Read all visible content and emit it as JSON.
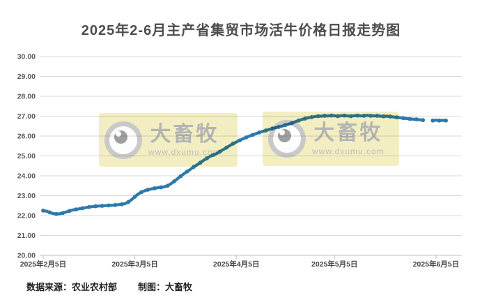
{
  "title": "2025年2-6月主产省集贸市场活牛价格日报走势图",
  "footer": {
    "source_label": "数据来源：农业农村部",
    "credit_label": "制图：大畜牧"
  },
  "watermark": {
    "brand": "大畜牧",
    "url": "www.dxumu.com"
  },
  "colors": {
    "line": "#2e79ab",
    "grid": "#d9d9d9",
    "axis": "#bfbfbf",
    "title_text": "#4d4d4d",
    "tick_text": "#595959",
    "watermark_bg": "#f3eec1",
    "watermark_text": "#b4b4b4"
  },
  "chart_data": {
    "type": "line",
    "title": "2025年2-6月主产省集贸市场活牛价格日报走势图",
    "xlabel": "",
    "ylabel": "",
    "ylim": [
      20,
      30
    ],
    "grid": true,
    "legend": "none",
    "y_tick_labels": [
      "30.00",
      "29.00",
      "28.00",
      "27.00",
      "26.00",
      "25.00",
      "24.00",
      "23.00",
      "22.00",
      "21.00",
      "20.00"
    ],
    "x_ticks": [
      {
        "label": "2025年2月5日",
        "date": "2025-02-05"
      },
      {
        "label": "2025年3月5日",
        "date": "2025-03-05"
      },
      {
        "label": "2025年4月5日",
        "date": "2025-04-05"
      },
      {
        "label": "2025年5月5日",
        "date": "2025-05-05"
      },
      {
        "label": "2025年6月5日",
        "date": "2025-06-05"
      }
    ],
    "series": [
      {
        "name": "主产省集贸市场活牛价格（日报）",
        "points": [
          [
            "2025-02-05",
            22.25
          ],
          [
            "2025-02-06",
            22.22
          ],
          [
            "2025-02-07",
            22.16
          ],
          [
            "2025-02-08",
            22.1
          ],
          [
            "2025-02-09",
            22.08
          ],
          [
            "2025-02-10",
            22.09
          ],
          [
            "2025-02-11",
            22.13
          ],
          [
            "2025-02-12",
            22.18
          ],
          [
            "2025-02-13",
            22.23
          ],
          [
            "2025-02-14",
            22.28
          ],
          [
            "2025-02-15",
            22.31
          ],
          [
            "2025-02-16",
            22.34
          ],
          [
            "2025-02-17",
            22.37
          ],
          [
            "2025-02-18",
            22.4
          ],
          [
            "2025-02-19",
            22.43
          ],
          [
            "2025-02-20",
            22.45
          ],
          [
            "2025-02-21",
            22.47
          ],
          [
            "2025-02-22",
            22.48
          ],
          [
            "2025-02-23",
            22.49
          ],
          [
            "2025-02-24",
            22.5
          ],
          [
            "2025-02-25",
            22.51
          ],
          [
            "2025-02-26",
            22.52
          ],
          [
            "2025-02-27",
            22.53
          ],
          [
            "2025-02-28",
            22.55
          ],
          [
            "2025-03-01",
            22.57
          ],
          [
            "2025-03-02",
            22.6
          ],
          [
            "2025-03-03",
            22.68
          ],
          [
            "2025-03-04",
            22.8
          ],
          [
            "2025-03-05",
            22.95
          ],
          [
            "2025-03-06",
            23.08
          ],
          [
            "2025-03-07",
            23.18
          ],
          [
            "2025-03-08",
            23.25
          ],
          [
            "2025-03-09",
            23.3
          ],
          [
            "2025-03-10",
            23.34
          ],
          [
            "2025-03-11",
            23.37
          ],
          [
            "2025-03-12",
            23.4
          ],
          [
            "2025-03-13",
            23.42
          ],
          [
            "2025-03-14",
            23.45
          ],
          [
            "2025-03-15",
            23.5
          ],
          [
            "2025-03-16",
            23.6
          ],
          [
            "2025-03-17",
            23.72
          ],
          [
            "2025-03-18",
            23.85
          ],
          [
            "2025-03-19",
            23.98
          ],
          [
            "2025-03-20",
            24.1
          ],
          [
            "2025-03-21",
            24.22
          ],
          [
            "2025-03-22",
            24.33
          ],
          [
            "2025-03-23",
            24.45
          ],
          [
            "2025-03-24",
            24.55
          ],
          [
            "2025-03-25",
            24.66
          ],
          [
            "2025-03-26",
            24.78
          ],
          [
            "2025-03-27",
            24.88
          ],
          [
            "2025-03-28",
            24.98
          ],
          [
            "2025-03-29",
            25.05
          ],
          [
            "2025-03-30",
            25.12
          ],
          [
            "2025-03-31",
            25.22
          ],
          [
            "2025-04-01",
            25.32
          ],
          [
            "2025-04-02",
            25.42
          ],
          [
            "2025-04-03",
            25.52
          ],
          [
            "2025-04-04",
            25.62
          ],
          [
            "2025-04-05",
            25.7
          ],
          [
            "2025-04-06",
            25.78
          ],
          [
            "2025-04-07",
            25.86
          ],
          [
            "2025-04-08",
            25.93
          ],
          [
            "2025-04-09",
            26.0
          ],
          [
            "2025-04-10",
            26.06
          ],
          [
            "2025-04-11",
            26.12
          ],
          [
            "2025-04-12",
            26.18
          ],
          [
            "2025-04-13",
            26.23
          ],
          [
            "2025-04-14",
            26.28
          ],
          [
            "2025-04-15",
            26.33
          ],
          [
            "2025-04-16",
            26.38
          ],
          [
            "2025-04-17",
            26.42
          ],
          [
            "2025-04-18",
            26.46
          ],
          [
            "2025-04-19",
            26.5
          ],
          [
            "2025-04-20",
            26.55
          ],
          [
            "2025-04-21",
            26.6
          ],
          [
            "2025-04-22",
            26.66
          ],
          [
            "2025-04-23",
            26.72
          ],
          [
            "2025-04-24",
            26.78
          ],
          [
            "2025-04-25",
            26.83
          ],
          [
            "2025-04-26",
            26.88
          ],
          [
            "2025-04-27",
            26.92
          ],
          [
            "2025-04-28",
            26.95
          ],
          [
            "2025-04-29",
            26.98
          ],
          [
            "2025-04-30",
            27.0
          ],
          [
            "2025-05-01",
            27.0
          ],
          [
            "2025-05-02",
            27.02
          ],
          [
            "2025-05-03",
            27.01
          ],
          [
            "2025-05-04",
            27.03
          ],
          [
            "2025-05-05",
            27.02
          ],
          [
            "2025-05-06",
            27.0
          ],
          [
            "2025-05-07",
            27.02
          ],
          [
            "2025-05-08",
            27.03
          ],
          [
            "2025-05-09",
            27.01
          ],
          [
            "2025-05-10",
            27.0
          ],
          [
            "2025-05-11",
            27.02
          ],
          [
            "2025-05-12",
            27.03
          ],
          [
            "2025-05-13",
            27.01
          ],
          [
            "2025-05-14",
            27.02
          ],
          [
            "2025-05-15",
            27.04
          ],
          [
            "2025-05-16",
            27.02
          ],
          [
            "2025-05-17",
            27.01
          ],
          [
            "2025-05-18",
            27.02
          ],
          [
            "2025-05-19",
            27.0
          ],
          [
            "2025-05-20",
            26.99
          ],
          [
            "2025-05-21",
            27.0
          ],
          [
            "2025-05-22",
            26.98
          ],
          [
            "2025-05-23",
            26.96
          ],
          [
            "2025-05-24",
            26.94
          ],
          [
            "2025-05-25",
            26.92
          ],
          [
            "2025-05-26",
            26.9
          ],
          [
            "2025-05-27",
            26.88
          ],
          [
            "2025-05-28",
            26.86
          ],
          [
            "2025-05-29",
            26.85
          ],
          [
            "2025-05-30",
            26.84
          ],
          [
            "2025-05-31",
            26.82
          ],
          [
            "2025-06-01",
            26.8
          ],
          [
            "2025-06-02",
            null
          ],
          [
            "2025-06-03",
            null
          ],
          [
            "2025-06-04",
            26.78
          ],
          [
            "2025-06-05",
            26.8
          ],
          [
            "2025-06-06",
            26.78
          ],
          [
            "2025-06-07",
            26.79
          ],
          [
            "2025-06-08",
            26.78
          ]
        ]
      }
    ]
  }
}
